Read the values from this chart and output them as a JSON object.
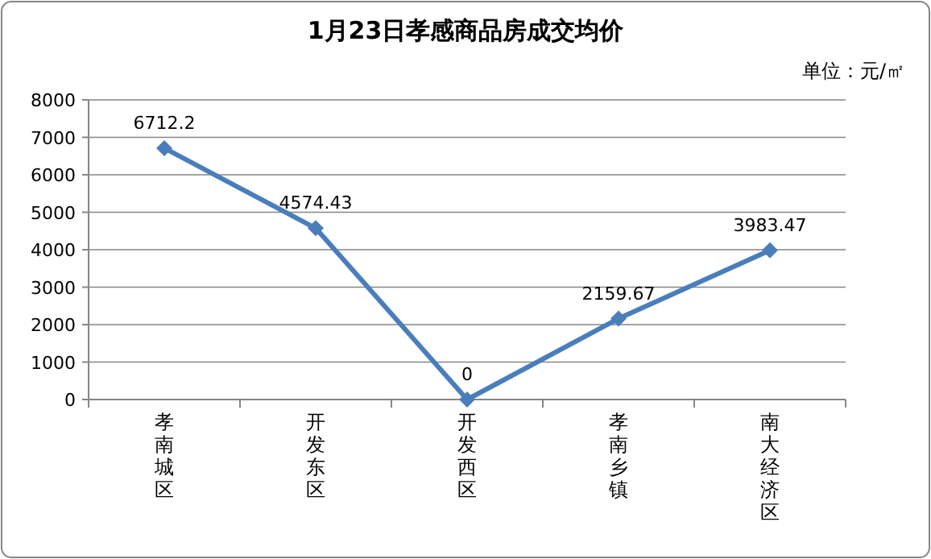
{
  "chart_data": {
    "type": "line",
    "title": "1月23日孝感商品房成交均价",
    "annotations": [
      "单位：元/㎡"
    ],
    "categories": [
      "孝南城区",
      "开发东区",
      "开发西区",
      "孝南乡镇",
      "南大经济区"
    ],
    "values": [
      6712.2,
      4574.43,
      0,
      2159.67,
      3983.47
    ],
    "color": "#4a7ebb",
    "ylim": [
      0,
      8000
    ],
    "yticks": [
      0,
      1000,
      2000,
      3000,
      4000,
      5000,
      6000,
      7000,
      8000
    ],
    "grid": "y",
    "marker": "diamond",
    "data_labels": true
  }
}
